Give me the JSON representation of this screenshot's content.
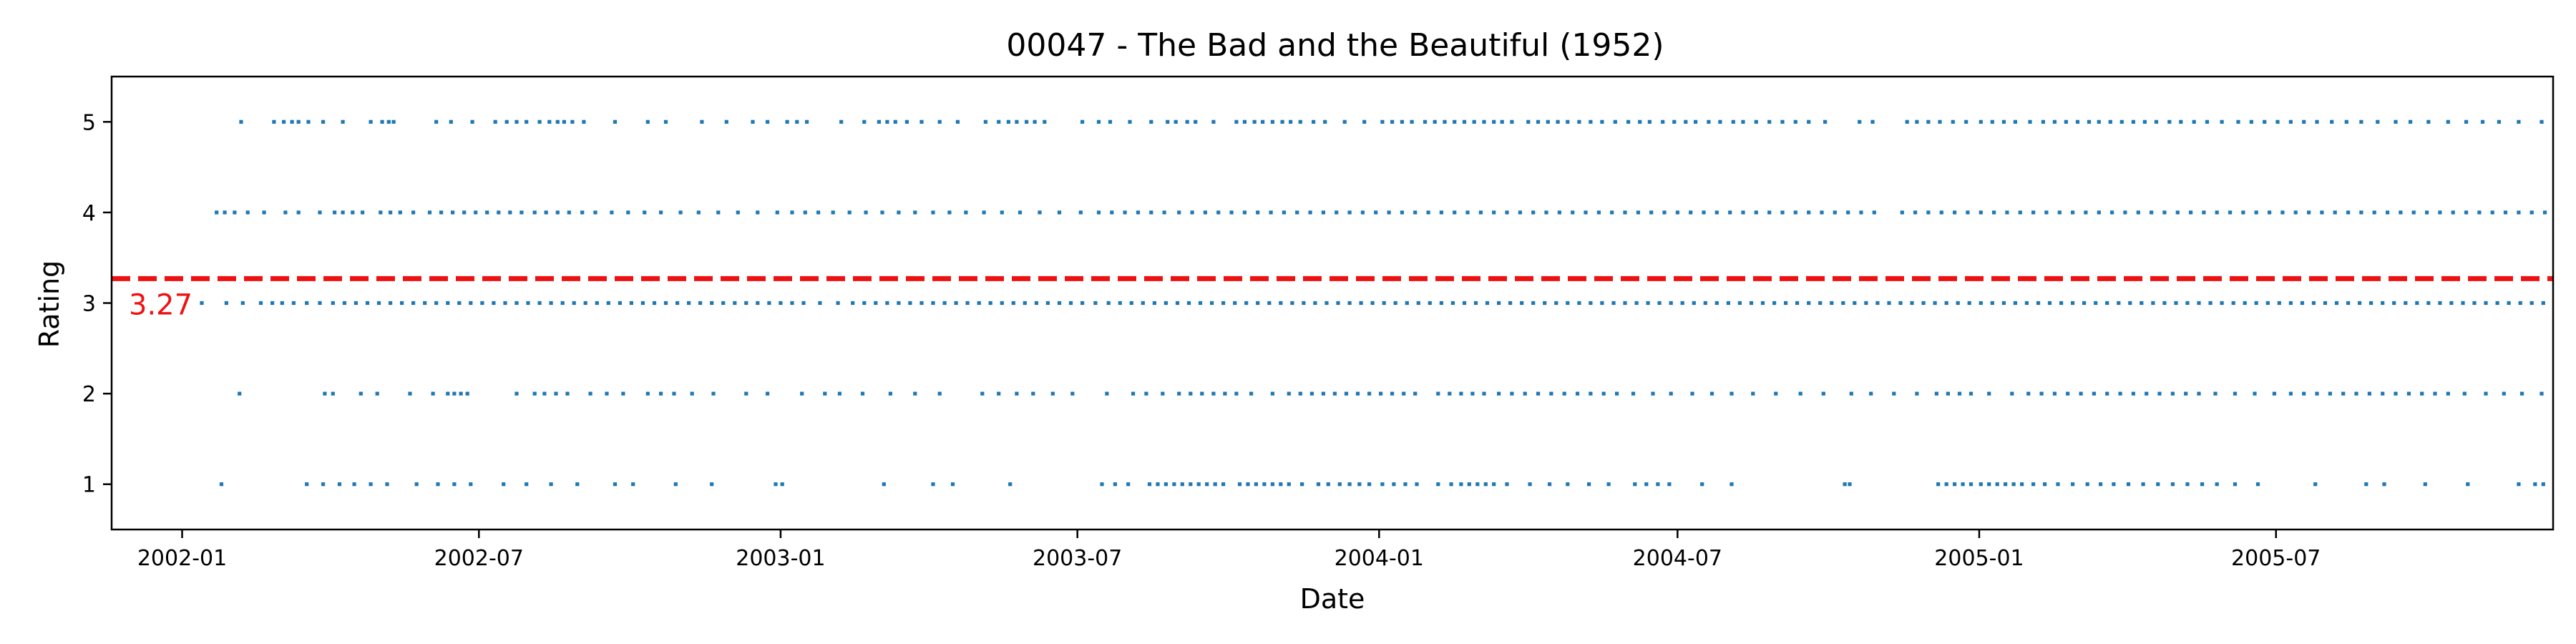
{
  "chart_data": {
    "type": "scatter",
    "title": "00047 - The Bad and the Beautiful (1952)",
    "xlabel": "Date",
    "ylabel": "Rating",
    "xlim": [
      "2001-11-19",
      "2005-12-17"
    ],
    "ylim": [
      0.5,
      5.5
    ],
    "grid": false,
    "x_ticks": [
      "2002-01",
      "2002-07",
      "2003-01",
      "2003-07",
      "2004-01",
      "2004-07",
      "2005-01",
      "2005-07"
    ],
    "y_ticks": [
      "1",
      "2",
      "3",
      "4",
      "5"
    ],
    "point_color": "#1f77b4",
    "mean": {
      "value": 3.27,
      "label": "3.27",
      "color": "#ee1111",
      "style": "dashed"
    },
    "series": [
      {
        "y": 5,
        "x": [
          "2002-02-06",
          "2002-02-26",
          "2002-03-04",
          "2002-03-09",
          "2002-03-13",
          "2002-03-19",
          "2002-03-28",
          "2002-04-09",
          "2002-04-26",
          "2002-05-03",
          "2002-05-07",
          "2002-05-10",
          "2002-06-05",
          "2002-06-14",
          "2002-06-27",
          "2002-07-11",
          "2002-07-18",
          "2002-07-24",
          "2002-07-30",
          "2002-08-07",
          "2002-08-13",
          "2002-08-18",
          "2002-08-22",
          "2002-08-27",
          "2002-09-03",
          "2002-09-22",
          "2002-10-12",
          "2002-10-23",
          "2002-11-14",
          "2002-11-29",
          "2002-12-15",
          "2002-12-24",
          "2003-01-05",
          "2003-01-11",
          "2003-01-17",
          "2003-02-07",
          "2003-02-21",
          "2003-03-02",
          "2003-03-07",
          "2003-03-12",
          "2003-03-19",
          "2003-03-28",
          "2003-04-08",
          "2003-04-19",
          "2003-05-06",
          "2003-05-14",
          "2003-05-20",
          "2003-05-25",
          "2003-05-31",
          "2003-06-05",
          "2003-06-11",
          "2003-07-04",
          "2003-07-14",
          "2003-07-21",
          "2003-08-02",
          "2003-08-15",
          "2003-08-25",
          "2003-08-30",
          "2003-09-06",
          "2003-09-11",
          "2003-09-22",
          "2003-10-06",
          "2003-10-11",
          "2003-10-17",
          "2003-10-22",
          "2003-10-28",
          "2003-11-03",
          "2003-11-08",
          "2003-11-14",
          "2003-11-22",
          "2003-11-29",
          "2003-12-11",
          "2003-12-23",
          "2004-01-03",
          "2004-01-09",
          "2004-01-15",
          "2004-01-21",
          "2004-01-29",
          "2004-02-04",
          "2004-02-10",
          "2004-02-16",
          "2004-02-22",
          "2004-02-28",
          "2004-03-05",
          "2004-03-11",
          "2004-03-16",
          "2004-03-22",
          "2004-04-01",
          "2004-04-07",
          "2004-04-13",
          "2004-04-19",
          "2004-04-25",
          "2004-05-02",
          "2004-05-09",
          "2004-05-16",
          "2004-05-24",
          "2004-06-01",
          "2004-06-08",
          "2004-06-14",
          "2004-06-22",
          "2004-06-29",
          "2004-07-06",
          "2004-07-12",
          "2004-07-20",
          "2004-07-27",
          "2004-08-04",
          "2004-08-10",
          "2004-08-18",
          "2004-08-26",
          "2004-09-03",
          "2004-09-11",
          "2004-09-19",
          "2004-09-29",
          "2004-10-20",
          "2004-10-28",
          "2004-11-18",
          "2004-11-24",
          "2004-12-01",
          "2004-12-08",
          "2004-12-16",
          "2004-12-24",
          "2005-01-02",
          "2005-01-09",
          "2005-01-16",
          "2005-01-23",
          "2005-02-01",
          "2005-02-09",
          "2005-02-16",
          "2005-02-23",
          "2005-03-02",
          "2005-03-09",
          "2005-03-15",
          "2005-03-22",
          "2005-03-29",
          "2005-04-05",
          "2005-04-12",
          "2005-04-19",
          "2005-04-27",
          "2005-05-04",
          "2005-05-12",
          "2005-05-20",
          "2005-05-29",
          "2005-06-08",
          "2005-06-16",
          "2005-06-24",
          "2005-07-02",
          "2005-07-10",
          "2005-07-18",
          "2005-07-26",
          "2005-08-04",
          "2005-08-13",
          "2005-08-22",
          "2005-09-01",
          "2005-09-12",
          "2005-09-21",
          "2005-10-02",
          "2005-10-14",
          "2005-10-25",
          "2005-11-04",
          "2005-11-14",
          "2005-11-26",
          "2005-12-10"
        ]
      },
      {
        "y": 4,
        "x": [
          "2002-01-22",
          "2002-01-27",
          "2002-02-02",
          "2002-02-10",
          "2002-02-20",
          "2002-03-05",
          "2002-03-13",
          "2002-03-26",
          "2002-04-04",
          "2002-04-09",
          "2002-04-15",
          "2002-04-21",
          "2002-05-02",
          "2002-05-08",
          "2002-05-14",
          "2002-05-22",
          "2002-06-01",
          "2002-06-08",
          "2002-06-15",
          "2002-06-22",
          "2002-06-29",
          "2002-07-06",
          "2002-07-13",
          "2002-07-20",
          "2002-07-27",
          "2002-08-04",
          "2002-08-11",
          "2002-08-18",
          "2002-08-25",
          "2002-09-02",
          "2002-09-10",
          "2002-09-20",
          "2002-09-30",
          "2002-10-10",
          "2002-10-20",
          "2002-11-01",
          "2002-11-12",
          "2002-11-24",
          "2002-12-06",
          "2002-12-18",
          "2002-12-30",
          "2003-01-08",
          "2003-01-16",
          "2003-01-24",
          "2003-02-02",
          "2003-02-12",
          "2003-02-22",
          "2003-03-04",
          "2003-03-14",
          "2003-03-24",
          "2003-04-04",
          "2003-04-14",
          "2003-04-24",
          "2003-05-05",
          "2003-05-16",
          "2003-05-27",
          "2003-06-08",
          "2003-06-20",
          "2003-07-03",
          "2003-07-14",
          "2003-07-22",
          "2003-07-30",
          "2003-08-07",
          "2003-08-15",
          "2003-08-23",
          "2003-09-01",
          "2003-09-09",
          "2003-09-17",
          "2003-09-25",
          "2003-10-03",
          "2003-10-11",
          "2003-10-19",
          "2003-10-27",
          "2003-11-04",
          "2003-11-12",
          "2003-11-20",
          "2003-11-28",
          "2003-12-06",
          "2003-12-14",
          "2003-12-22",
          "2003-12-30",
          "2004-01-07",
          "2004-01-15",
          "2004-01-23",
          "2004-01-31",
          "2004-02-08",
          "2004-02-16",
          "2004-02-24",
          "2004-03-03",
          "2004-03-11",
          "2004-03-19",
          "2004-03-27",
          "2004-04-04",
          "2004-04-12",
          "2004-04-20",
          "2004-04-28",
          "2004-05-06",
          "2004-05-14",
          "2004-05-22",
          "2004-05-30",
          "2004-06-07",
          "2004-06-15",
          "2004-06-23",
          "2004-07-01",
          "2004-07-09",
          "2004-07-17",
          "2004-07-25",
          "2004-08-02",
          "2004-08-10",
          "2004-08-18",
          "2004-08-26",
          "2004-09-03",
          "2004-09-11",
          "2004-09-19",
          "2004-09-27",
          "2004-10-05",
          "2004-10-13",
          "2004-10-21",
          "2004-10-29",
          "2004-11-15",
          "2004-11-23",
          "2004-12-01",
          "2004-12-09",
          "2004-12-17",
          "2004-12-25",
          "2005-01-02",
          "2005-01-10",
          "2005-01-18",
          "2005-01-26",
          "2005-02-03",
          "2005-02-11",
          "2005-02-19",
          "2005-02-27",
          "2005-03-07",
          "2005-03-15",
          "2005-03-23",
          "2005-03-31",
          "2005-04-08",
          "2005-04-16",
          "2005-04-24",
          "2005-05-02",
          "2005-05-10",
          "2005-05-18",
          "2005-05-26",
          "2005-06-03",
          "2005-06-11",
          "2005-06-19",
          "2005-06-27",
          "2005-07-05",
          "2005-07-13",
          "2005-07-21",
          "2005-07-29",
          "2005-08-06",
          "2005-08-14",
          "2005-08-22",
          "2005-08-30",
          "2005-09-07",
          "2005-09-15",
          "2005-09-23",
          "2005-10-01",
          "2005-10-09",
          "2005-10-17",
          "2005-10-25",
          "2005-11-02",
          "2005-11-10",
          "2005-11-18",
          "2005-11-26",
          "2005-12-04",
          "2005-12-12"
        ]
      },
      {
        "y": 3,
        "x": [
          "2002-01-13",
          "2002-01-28",
          "2002-02-07",
          "2002-02-18",
          "2002-02-25",
          "2002-03-03",
          "2002-03-10",
          "2002-03-18",
          "2002-03-26",
          "2002-04-03",
          "2002-04-10",
          "2002-04-17",
          "2002-04-24",
          "2002-05-01",
          "2002-05-08",
          "2002-05-15",
          "2002-05-22",
          "2002-05-29",
          "2002-06-05",
          "2002-06-12",
          "2002-06-19",
          "2002-06-26",
          "2002-07-03",
          "2002-07-10",
          "2002-07-17",
          "2002-07-24",
          "2002-07-31",
          "2002-08-07",
          "2002-08-14",
          "2002-08-21",
          "2002-08-28",
          "2002-09-04",
          "2002-09-11",
          "2002-09-18",
          "2002-09-25",
          "2002-10-02",
          "2002-10-09",
          "2002-10-16",
          "2002-10-23",
          "2002-10-30",
          "2002-11-06",
          "2002-11-13",
          "2002-11-20",
          "2002-11-27",
          "2002-12-04",
          "2002-12-11",
          "2002-12-18",
          "2002-12-25",
          "2003-01-01",
          "2003-01-08",
          "2003-01-15",
          "2003-01-25",
          "2003-02-05",
          "2003-02-14",
          "2003-02-21",
          "2003-02-28",
          "2003-03-07",
          "2003-03-14",
          "2003-03-21",
          "2003-03-28",
          "2003-04-04",
          "2003-04-11",
          "2003-04-18",
          "2003-04-25",
          "2003-05-02",
          "2003-05-09",
          "2003-05-16",
          "2003-05-23",
          "2003-05-30",
          "2003-06-06",
          "2003-06-13",
          "2003-06-20",
          "2003-06-27",
          "2003-07-04",
          "2003-07-12",
          "2003-07-20",
          "2003-07-27",
          "2003-08-03",
          "2003-08-10",
          "2003-08-17",
          "2003-08-24",
          "2003-08-31",
          "2003-09-07",
          "2003-09-14",
          "2003-09-21",
          "2003-09-28",
          "2003-10-05",
          "2003-10-12",
          "2003-10-19",
          "2003-10-26",
          "2003-11-02",
          "2003-11-09",
          "2003-11-16",
          "2003-11-23",
          "2003-11-30",
          "2003-12-07",
          "2003-12-14",
          "2003-12-21",
          "2003-12-28",
          "2004-01-04",
          "2004-01-11",
          "2004-01-18",
          "2004-01-25",
          "2004-02-01",
          "2004-02-08",
          "2004-02-15",
          "2004-02-22",
          "2004-02-29",
          "2004-03-07",
          "2004-03-14",
          "2004-03-21",
          "2004-03-28",
          "2004-04-04",
          "2004-04-11",
          "2004-04-18",
          "2004-04-25",
          "2004-05-02",
          "2004-05-09",
          "2004-05-16",
          "2004-05-23",
          "2004-05-30",
          "2004-06-06",
          "2004-06-13",
          "2004-06-20",
          "2004-06-27",
          "2004-07-04",
          "2004-07-11",
          "2004-07-18",
          "2004-07-25",
          "2004-08-01",
          "2004-08-08",
          "2004-08-15",
          "2004-08-22",
          "2004-08-29",
          "2004-09-05",
          "2004-09-12",
          "2004-09-19",
          "2004-09-26",
          "2004-10-03",
          "2004-10-10",
          "2004-10-17",
          "2004-10-24",
          "2004-10-31",
          "2004-11-07",
          "2004-11-14",
          "2004-11-21",
          "2004-11-28",
          "2004-12-05",
          "2004-12-12",
          "2004-12-19",
          "2004-12-26",
          "2005-01-02",
          "2005-01-09",
          "2005-01-16",
          "2005-01-23",
          "2005-01-30",
          "2005-02-06",
          "2005-02-13",
          "2005-02-20",
          "2005-02-27",
          "2005-03-06",
          "2005-03-13",
          "2005-03-20",
          "2005-03-27",
          "2005-04-03",
          "2005-04-10",
          "2005-04-17",
          "2005-04-24",
          "2005-05-01",
          "2005-05-08",
          "2005-05-15",
          "2005-05-22",
          "2005-05-29",
          "2005-06-05",
          "2005-06-12",
          "2005-06-19",
          "2005-06-26",
          "2005-07-03",
          "2005-07-10",
          "2005-07-17",
          "2005-07-24",
          "2005-07-31",
          "2005-08-07",
          "2005-08-14",
          "2005-08-21",
          "2005-08-28",
          "2005-09-04",
          "2005-09-11",
          "2005-09-18",
          "2005-09-25",
          "2005-10-02",
          "2005-10-09",
          "2005-10-16",
          "2005-10-23",
          "2005-10-30",
          "2005-11-06",
          "2005-11-13",
          "2005-11-20",
          "2005-11-27",
          "2005-12-04",
          "2005-12-11"
        ]
      },
      {
        "y": 2,
        "x": [
          "2002-02-05",
          "2002-03-29",
          "2002-04-03",
          "2002-04-20",
          "2002-04-30",
          "2002-05-20",
          "2002-06-03",
          "2002-06-12",
          "2002-06-16",
          "2002-06-20",
          "2002-06-24",
          "2002-07-24",
          "2002-08-04",
          "2002-08-10",
          "2002-08-17",
          "2002-08-24",
          "2002-09-07",
          "2002-09-17",
          "2002-09-27",
          "2002-10-12",
          "2002-10-20",
          "2002-10-28",
          "2002-11-08",
          "2002-11-21",
          "2002-12-11",
          "2002-12-24",
          "2003-01-14",
          "2003-01-28",
          "2003-02-06",
          "2003-02-20",
          "2003-03-09",
          "2003-03-24",
          "2003-04-08",
          "2003-05-04",
          "2003-05-14",
          "2003-05-25",
          "2003-06-04",
          "2003-06-16",
          "2003-06-28",
          "2003-07-19",
          "2003-08-04",
          "2003-08-12",
          "2003-08-22",
          "2003-09-01",
          "2003-09-08",
          "2003-09-15",
          "2003-09-22",
          "2003-09-29",
          "2003-10-06",
          "2003-10-15",
          "2003-10-28",
          "2003-11-07",
          "2003-11-14",
          "2003-11-21",
          "2003-11-28",
          "2003-12-05",
          "2003-12-12",
          "2003-12-19",
          "2003-12-26",
          "2004-01-02",
          "2004-01-09",
          "2004-01-16",
          "2004-01-23",
          "2004-02-06",
          "2004-02-13",
          "2004-02-20",
          "2004-02-27",
          "2004-03-05",
          "2004-03-14",
          "2004-03-22",
          "2004-03-30",
          "2004-04-07",
          "2004-04-15",
          "2004-04-23",
          "2004-05-01",
          "2004-05-09",
          "2004-05-17",
          "2004-05-25",
          "2004-06-04",
          "2004-06-16",
          "2004-06-27",
          "2004-07-10",
          "2004-07-22",
          "2004-08-03",
          "2004-08-16",
          "2004-08-30",
          "2004-09-14",
          "2004-09-28",
          "2004-10-15",
          "2004-10-27",
          "2004-11-10",
          "2004-11-24",
          "2004-12-06",
          "2004-12-13",
          "2004-12-20",
          "2004-12-27",
          "2005-01-07",
          "2005-01-21",
          "2005-01-31",
          "2005-02-08",
          "2005-02-16",
          "2005-02-24",
          "2005-03-04",
          "2005-03-12",
          "2005-03-20",
          "2005-03-28",
          "2005-04-05",
          "2005-04-13",
          "2005-04-21",
          "2005-04-29",
          "2005-05-07",
          "2005-05-15",
          "2005-05-25",
          "2005-06-06",
          "2005-06-18",
          "2005-06-30",
          "2005-07-10",
          "2005-07-18",
          "2005-07-26",
          "2005-08-03",
          "2005-08-11",
          "2005-08-19",
          "2005-08-27",
          "2005-09-04",
          "2005-09-12",
          "2005-09-20",
          "2005-09-28",
          "2005-10-06",
          "2005-10-14",
          "2005-10-24",
          "2005-11-06",
          "2005-11-17",
          "2005-11-28",
          "2005-12-10"
        ]
      },
      {
        "y": 1,
        "x": [
          "2002-01-25",
          "2002-03-18",
          "2002-03-28",
          "2002-04-07",
          "2002-04-16",
          "2002-04-26",
          "2002-05-06",
          "2002-05-24",
          "2002-06-06",
          "2002-06-16",
          "2002-06-26",
          "2002-07-16",
          "2002-07-30",
          "2002-08-14",
          "2002-08-30",
          "2002-09-22",
          "2002-10-03",
          "2002-10-29",
          "2002-11-20",
          "2002-12-29",
          "2003-01-02",
          "2003-03-05",
          "2003-04-04",
          "2003-04-16",
          "2003-05-21",
          "2003-07-16",
          "2003-07-24",
          "2003-08-01",
          "2003-08-14",
          "2003-08-19",
          "2003-08-24",
          "2003-08-29",
          "2003-09-03",
          "2003-09-08",
          "2003-09-13",
          "2003-09-18",
          "2003-09-23",
          "2003-09-28",
          "2003-10-08",
          "2003-10-13",
          "2003-10-18",
          "2003-10-23",
          "2003-10-28",
          "2003-11-02",
          "2003-11-07",
          "2003-11-15",
          "2003-11-25",
          "2003-12-01",
          "2003-12-08",
          "2003-12-14",
          "2003-12-20",
          "2003-12-26",
          "2004-01-03",
          "2004-01-10",
          "2004-01-17",
          "2004-01-24",
          "2004-02-06",
          "2004-02-14",
          "2004-02-20",
          "2004-02-25",
          "2004-03-01",
          "2004-03-06",
          "2004-03-11",
          "2004-03-19",
          "2004-04-02",
          "2004-04-14",
          "2004-04-25",
          "2004-05-08",
          "2004-05-20",
          "2004-06-05",
          "2004-06-12",
          "2004-06-19",
          "2004-06-26",
          "2004-07-16",
          "2004-08-03",
          "2004-10-11",
          "2004-10-14",
          "2004-12-07",
          "2004-12-12",
          "2004-12-17",
          "2004-12-22",
          "2004-12-27",
          "2005-01-02",
          "2005-01-07",
          "2005-01-12",
          "2005-01-17",
          "2005-01-22",
          "2005-01-27",
          "2005-02-03",
          "2005-02-10",
          "2005-02-18",
          "2005-02-27",
          "2005-03-08",
          "2005-03-16",
          "2005-03-24",
          "2005-04-02",
          "2005-04-11",
          "2005-04-20",
          "2005-04-29",
          "2005-05-08",
          "2005-05-17",
          "2005-05-26",
          "2005-06-06",
          "2005-06-20",
          "2005-07-25",
          "2005-08-25",
          "2005-09-05",
          "2005-09-30",
          "2005-10-26",
          "2005-11-26",
          "2005-12-06",
          "2005-12-11"
        ]
      }
    ]
  }
}
